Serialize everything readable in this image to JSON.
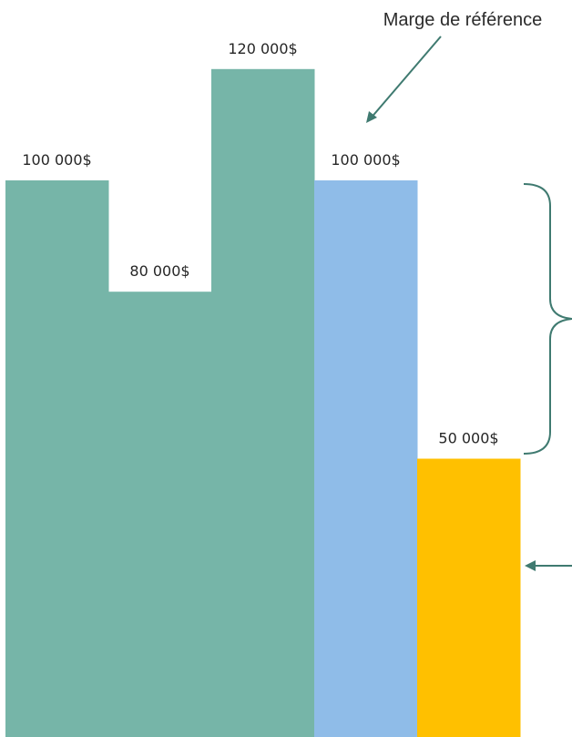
{
  "chart_data": {
    "type": "bar",
    "categories": [
      "",
      "",
      "",
      "",
      ""
    ],
    "values": [
      100000,
      80000,
      120000,
      100000,
      50000
    ],
    "data_labels": [
      "100 000$",
      "80 000$",
      "120 000$",
      "100 000$",
      "50 000$"
    ],
    "bar_colors": [
      "#76b5a8",
      "#76b5a8",
      "#76b5a8",
      "#8fbce8",
      "#ffc000"
    ],
    "annotation_color": "#3f7a70",
    "title": "",
    "xlabel": "",
    "ylabel": "",
    "ylim": [
      0,
      130000
    ],
    "grid": false,
    "legend": "none",
    "annotations": {
      "reference_margin_label": "Marge de référence"
    }
  }
}
